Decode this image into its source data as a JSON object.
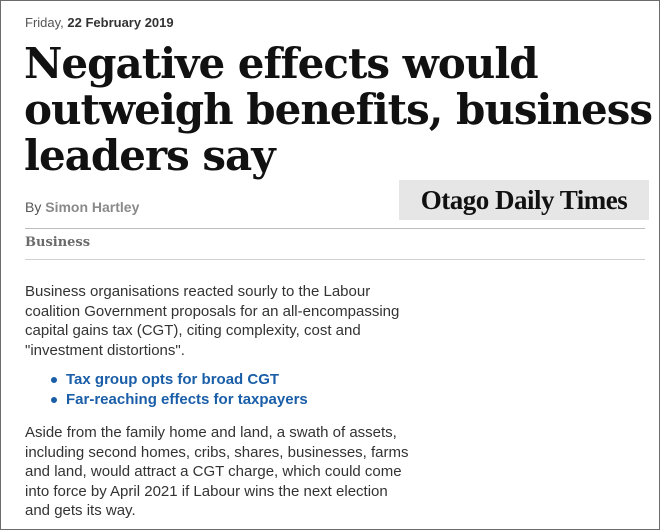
{
  "article": {
    "date_day": "Friday,",
    "date_full": "22 February 2019",
    "headline_lines": [
      "Negative effects would",
      "outweigh benefits, business",
      "leaders say"
    ],
    "byline_prefix": "By",
    "author": "Simon Hartley",
    "publication": "Otago Daily Times",
    "section": "Business",
    "paragraph1_lines": [
      "Business organisations reacted sourly to the Labour",
      "coalition Government proposals for an all-encompassing",
      "capital gains tax (CGT), citing complexity, cost and",
      "\"investment distortions\"."
    ],
    "related_links": [
      "Tax group opts for broad CGT",
      "Far-reaching effects for taxpayers"
    ],
    "paragraph2_lines": [
      "Aside from the family home and land, a swath of assets,",
      "including second homes, cribs, shares, businesses, farms",
      "and land, would attract a CGT charge, which could come",
      "into force by April 2021 if Labour wins the next election",
      "and gets its way."
    ]
  },
  "colors": {
    "link": "#1a5ea8",
    "masthead_bg": "#e6e6e6",
    "text": "#333333"
  }
}
